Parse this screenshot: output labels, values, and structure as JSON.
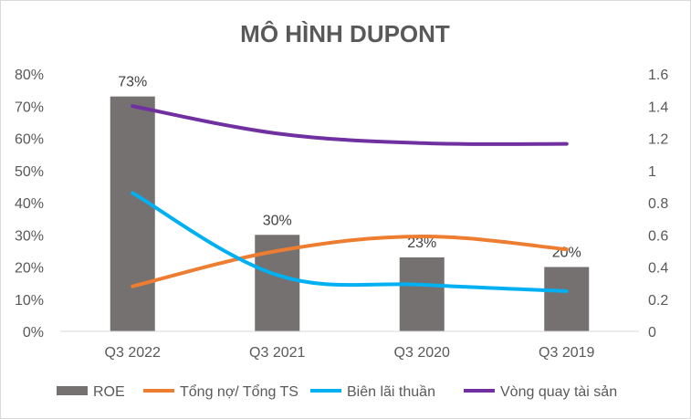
{
  "chart_data": {
    "type": "bar",
    "title": "MÔ HÌNH DUPONT",
    "categories": [
      "Q3 2022",
      "Q3 2021",
      "Q3 2020",
      "Q3 2019"
    ],
    "left_axis": {
      "ylim": [
        0,
        0.8
      ],
      "ticks": [
        0,
        0.1,
        0.2,
        0.3,
        0.4,
        0.5,
        0.6,
        0.7,
        0.8
      ],
      "tick_labels": [
        "0%",
        "10%",
        "20%",
        "30%",
        "40%",
        "50%",
        "60%",
        "70%",
        "80%"
      ]
    },
    "right_axis": {
      "ylim": [
        0,
        1.6
      ],
      "ticks": [
        0,
        0.2,
        0.4,
        0.6,
        0.8,
        1,
        1.2,
        1.4,
        1.6
      ],
      "tick_labels": [
        "0",
        "0.2",
        "0.4",
        "0.6",
        "0.8",
        "1",
        "1.2",
        "1.4",
        "1.6"
      ]
    },
    "grid": false,
    "legend_position": "bottom",
    "series": [
      {
        "name": "ROE",
        "type": "bar",
        "axis": "left",
        "color": "#767171",
        "values": [
          0.73,
          0.3,
          0.23,
          0.2
        ],
        "data_labels": [
          "73%",
          "30%",
          "23%",
          "20%"
        ]
      },
      {
        "name": "Tổng nợ/ Tổng TS",
        "type": "line",
        "axis": "left",
        "color": "#ED7D31",
        "values": [
          0.14,
          0.25,
          0.295,
          0.255
        ]
      },
      {
        "name": "Biên lãi thuần",
        "type": "line",
        "axis": "left",
        "color": "#00B0F0",
        "values": [
          0.43,
          0.175,
          0.145,
          0.125
        ]
      },
      {
        "name": "Vòng quay tài sản",
        "type": "line",
        "axis": "right",
        "color": "#7030A0",
        "values": [
          1.4,
          1.23,
          1.17,
          1.165
        ]
      }
    ]
  }
}
